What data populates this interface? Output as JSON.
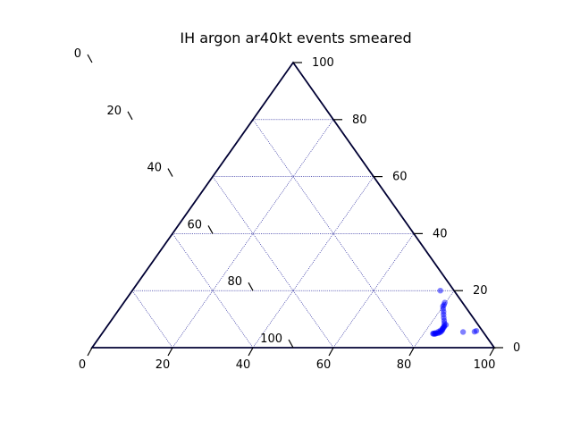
{
  "chart_data": {
    "type": "scatter",
    "subtype": "ternary",
    "title": "IH argon ar40kt events smeared",
    "axis_range": [
      0,
      100
    ],
    "grid": true,
    "colors": {
      "axis": "#000033",
      "grid": "#00008b",
      "points": "#0000ff"
    },
    "ticks": {
      "bottom": [
        "0",
        "20",
        "40",
        "60",
        "80",
        "100"
      ],
      "right": [
        "0",
        "20",
        "40",
        "60",
        "80",
        "100"
      ],
      "left": [
        "0",
        "20",
        "40",
        "60",
        "80",
        "100"
      ]
    },
    "points": [
      {
        "right": 15,
        "left": 5
      },
      {
        "right": 14.5,
        "left": 5.5
      },
      {
        "right": 13.6,
        "left": 5.9
      },
      {
        "right": 12.6,
        "left": 6.3
      },
      {
        "right": 11.6,
        "left": 6.8
      },
      {
        "right": 10.5,
        "left": 7.3
      },
      {
        "right": 9.5,
        "left": 7.7
      },
      {
        "right": 8.6,
        "left": 8.1
      },
      {
        "right": 7.8,
        "left": 8.5
      },
      {
        "right": 7.2,
        "left": 9.0
      },
      {
        "right": 6.7,
        "left": 9.4
      },
      {
        "right": 6.2,
        "left": 9.8
      },
      {
        "right": 5.8,
        "left": 10.2
      },
      {
        "right": 5.5,
        "left": 10.6
      },
      {
        "right": 5.3,
        "left": 11.0
      },
      {
        "right": 5.1,
        "left": 11.4
      },
      {
        "right": 5.0,
        "left": 11.9
      },
      {
        "right": 4.9,
        "left": 12.2
      },
      {
        "right": 4.8,
        "left": 12.5
      },
      {
        "right": 4.9,
        "left": 12.8
      },
      {
        "right": 5.0,
        "left": 12.6
      },
      {
        "right": 5.2,
        "left": 12.0
      },
      {
        "right": 5.6,
        "left": 11.1
      },
      {
        "right": 6.0,
        "left": 10.4
      },
      {
        "right": 6.6,
        "left": 9.6
      },
      {
        "right": 7.3,
        "left": 8.8
      },
      {
        "right": 8.0,
        "left": 8.0
      },
      {
        "right": 5.5,
        "left": 5.0
      },
      {
        "right": 5.6,
        "left": 2.1
      },
      {
        "right": 5.9,
        "left": 1.5
      },
      {
        "right": 15.8,
        "left": 4.4
      },
      {
        "right": 20.0,
        "left": 3.4
      }
    ]
  }
}
